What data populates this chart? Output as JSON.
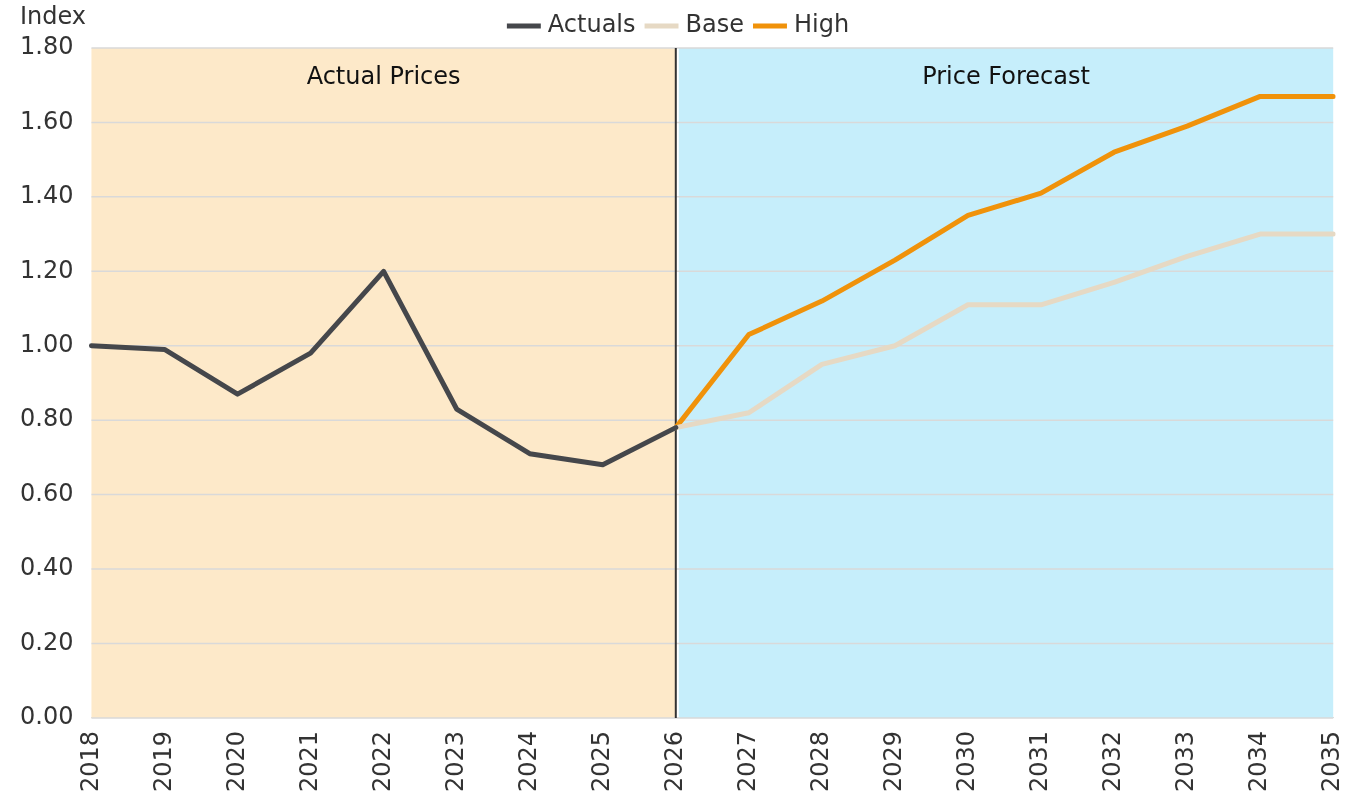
{
  "chart_data": {
    "type": "line",
    "ylabel": "Index",
    "categories": [
      "2018",
      "2019",
      "2020",
      "2021",
      "2022",
      "2023",
      "2024",
      "2025",
      "2026",
      "2027",
      "2028",
      "2029",
      "2030",
      "2031",
      "2032",
      "2033",
      "2034",
      "2035"
    ],
    "series": [
      {
        "name": "Actuals",
        "color": "#45474b",
        "values": [
          1.0,
          0.99,
          0.87,
          0.98,
          1.2,
          0.83,
          0.71,
          0.68,
          0.78,
          null,
          null,
          null,
          null,
          null,
          null,
          null,
          null,
          null
        ]
      },
      {
        "name": "Base",
        "color": "#e6d9c4",
        "values": [
          null,
          null,
          null,
          null,
          null,
          null,
          null,
          null,
          0.78,
          0.82,
          0.95,
          1.0,
          1.11,
          1.11,
          1.17,
          1.24,
          1.3,
          1.3
        ]
      },
      {
        "name": "High",
        "color": "#f0920a",
        "values": [
          null,
          null,
          null,
          null,
          null,
          null,
          null,
          null,
          0.78,
          1.03,
          1.12,
          1.23,
          1.35,
          1.41,
          1.52,
          1.59,
          1.67,
          1.67
        ]
      }
    ],
    "ylim": [
      0,
      1.8
    ],
    "yticks": [
      {
        "value": 0,
        "label": "0.00"
      },
      {
        "value": 0.2,
        "label": "0.20"
      },
      {
        "value": 0.4,
        "label": "0.40"
      },
      {
        "value": 0.6,
        "label": "0.60"
      },
      {
        "value": 0.8,
        "label": "0.80"
      },
      {
        "value": 1.0,
        "label": "1.00"
      },
      {
        "value": 1.2,
        "label": "1.20"
      },
      {
        "value": 1.4,
        "label": "1.40"
      },
      {
        "value": 1.6,
        "label": "1.60"
      },
      {
        "value": 1.8,
        "label": "1.80"
      }
    ],
    "bands": [
      {
        "axis": "x",
        "from": "2018",
        "to": "2026",
        "label": "Actual Prices",
        "color": "#fde9c9"
      },
      {
        "axis": "x",
        "from": "2026",
        "to": "2035",
        "label": "Price Forecast",
        "color": "#c6eefb"
      }
    ],
    "ref_lines": [
      {
        "axis": "x",
        "value": "2026",
        "color": "#333333"
      }
    ],
    "grid": "y",
    "legend": "top",
    "marker": "none",
    "line_style": "solid"
  }
}
